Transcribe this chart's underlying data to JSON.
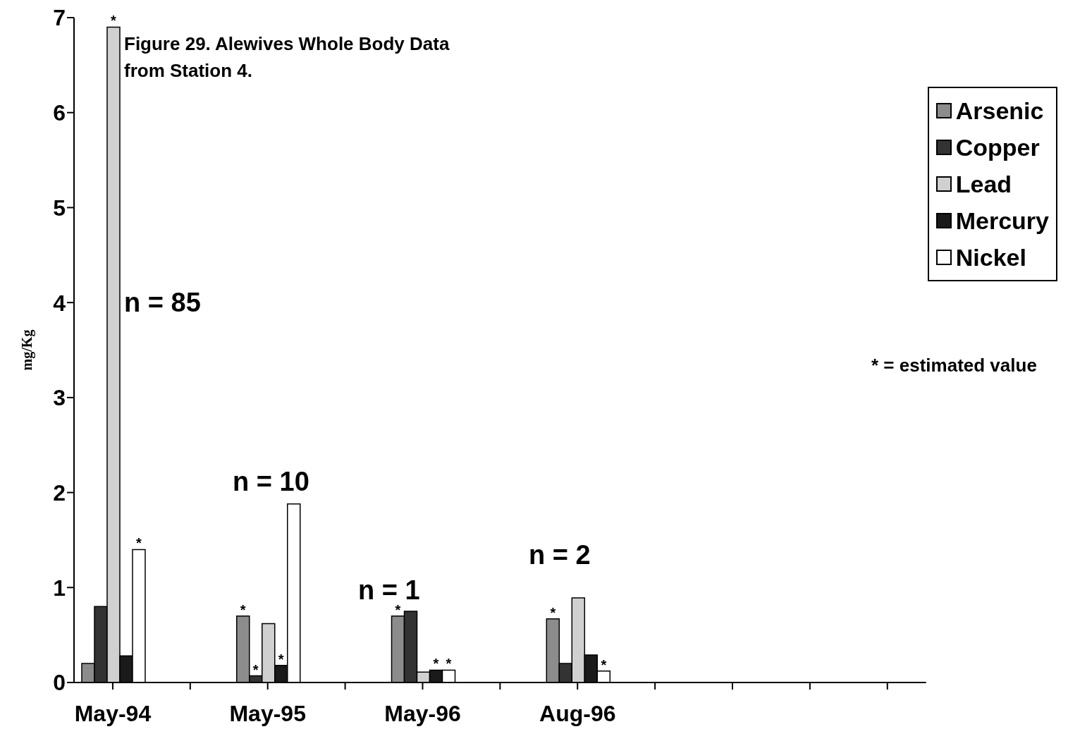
{
  "chart_data": {
    "type": "bar",
    "title": "Figure 29. Alewives Whole Body Data from Station 4.",
    "ylabel": "mg/Kg",
    "categories": [
      "May-94",
      null,
      "May-95",
      null,
      "May-96",
      null,
      "Aug-96",
      null,
      null,
      null,
      null
    ],
    "series": [
      {
        "name": "Arsenic",
        "color": "#8c8c8c",
        "values": [
          0.2,
          null,
          0.7,
          null,
          0.7,
          null,
          0.67,
          null,
          null,
          null,
          null
        ],
        "value_labels": [
          null,
          null,
          "*",
          null,
          "*",
          null,
          "*",
          null,
          null,
          null,
          null
        ]
      },
      {
        "name": "Copper",
        "color": "#333333",
        "values": [
          0.8,
          null,
          0.07,
          null,
          0.75,
          null,
          0.2,
          null,
          null,
          null,
          null
        ],
        "value_labels": [
          null,
          null,
          "*",
          null,
          null,
          null,
          null,
          null,
          null,
          null,
          null
        ]
      },
      {
        "name": "Lead",
        "color": "#d0d0d0",
        "values": [
          6.9,
          null,
          0.62,
          null,
          0.11,
          null,
          0.89,
          null,
          null,
          null,
          null
        ],
        "value_labels": [
          "*",
          null,
          null,
          null,
          null,
          null,
          null,
          null,
          null,
          null,
          null
        ]
      },
      {
        "name": "Mercury",
        "color": "#1a1a1a",
        "values": [
          0.28,
          null,
          0.18,
          null,
          0.13,
          null,
          0.29,
          null,
          null,
          null,
          null
        ],
        "value_labels": [
          null,
          null,
          "*",
          null,
          "*",
          null,
          null,
          null,
          null,
          null,
          null
        ]
      },
      {
        "name": "Nickel",
        "color": "#ffffff",
        "values": [
          1.4,
          null,
          1.88,
          null,
          0.13,
          null,
          0.12,
          null,
          null,
          null,
          null
        ],
        "value_labels": [
          "*",
          null,
          null,
          null,
          "*",
          null,
          "*",
          null,
          null,
          null,
          null
        ]
      }
    ],
    "ylim": [
      0,
      7
    ],
    "yticks": [
      0,
      1,
      2,
      3,
      4,
      5,
      6,
      7
    ],
    "grid": false,
    "legend": "top right",
    "annotations": [
      "n = 85",
      "n = 10",
      "n = 1",
      "n = 2",
      "* = estimated value"
    ]
  }
}
